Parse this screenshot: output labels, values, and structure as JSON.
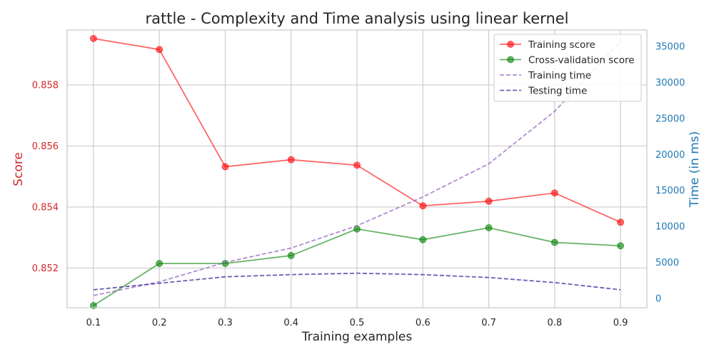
{
  "chart_data": {
    "type": "line",
    "title": "rattle - Complexity and Time analysis using linear kernel",
    "xlabel": "Training examples",
    "ylabel": "Score",
    "y2label": "Time (in ms)",
    "x": [
      0.1,
      0.2,
      0.3,
      0.4,
      0.5,
      0.6,
      0.7,
      0.8,
      0.9
    ],
    "x_ticks": [
      "0.1",
      "0.2",
      "0.3",
      "0.4",
      "0.5",
      "0.6",
      "0.7",
      "0.8",
      "0.9"
    ],
    "xlim": [
      0.06,
      0.94
    ],
    "ylim": [
      0.8507,
      0.8598
    ],
    "y_ticks": [
      "0.852",
      "0.854",
      "0.856",
      "0.858"
    ],
    "y2lim": [
      -1300,
      37300
    ],
    "y2_ticks": [
      "0",
      "5000",
      "10000",
      "15000",
      "20000",
      "25000",
      "30000",
      "35000"
    ],
    "grid": true,
    "legend_position": "top-right",
    "colors": {
      "left_axis": "#d62728",
      "right_axis": "#1f77b4",
      "training_score": "#ff0000",
      "cv_score": "#008000",
      "training_time": "#9467bd",
      "testing_time": "#3a2b9a",
      "grid": "#cccccc",
      "frame": "#c8c8c8"
    },
    "series": [
      {
        "name": "Training score",
        "axis": "left",
        "style": "solid-marker",
        "values": [
          0.85952,
          0.85916,
          0.85532,
          0.85555,
          0.85537,
          0.85404,
          0.85419,
          0.85446,
          0.8535
        ]
      },
      {
        "name": "Cross-validation score",
        "axis": "left",
        "style": "solid-marker",
        "values": [
          0.85077,
          0.85215,
          0.85215,
          0.85241,
          0.85328,
          0.85293,
          0.85332,
          0.85284,
          0.85273
        ]
      },
      {
        "name": "Training time",
        "axis": "right",
        "style": "dashed",
        "values": [
          400,
          2300,
          5000,
          7000,
          10100,
          14100,
          18700,
          26000,
          35700
        ]
      },
      {
        "name": "Testing time",
        "axis": "right",
        "style": "dashed",
        "values": [
          1200,
          2100,
          3000,
          3300,
          3500,
          3300,
          2900,
          2200,
          1200
        ]
      }
    ]
  }
}
